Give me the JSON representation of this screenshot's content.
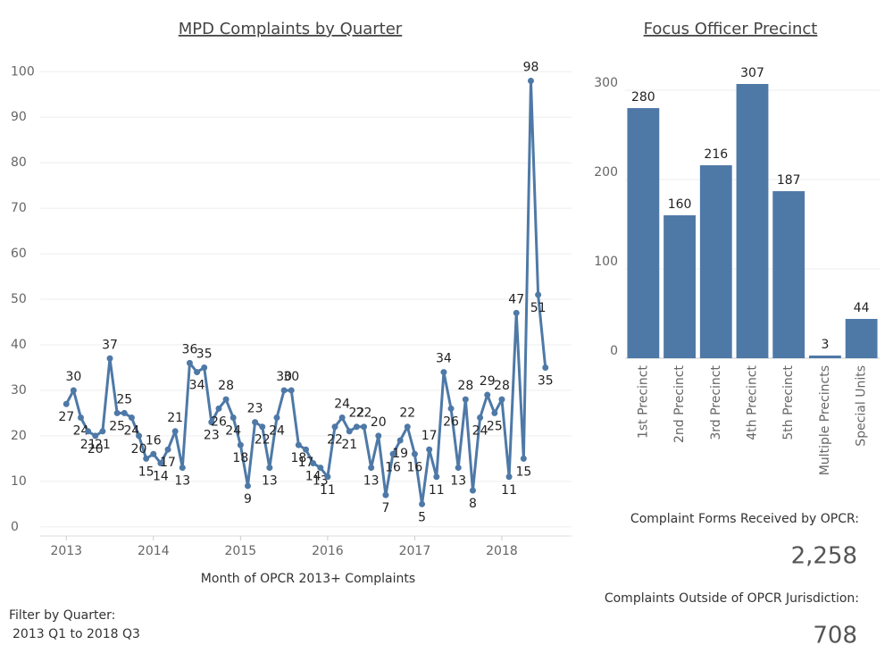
{
  "chart_data": [
    {
      "type": "line",
      "title": "MPD Complaints by Quarter",
      "x_label": "Month of OPCR 2013+ Complaints",
      "x": [
        "2013-01",
        "2013-02",
        "2013-03",
        "2013-04",
        "2013-05",
        "2013-06",
        "2013-07",
        "2013-08",
        "2013-09",
        "2013-10",
        "2013-11",
        "2013-12",
        "2014-01",
        "2014-02",
        "2014-03",
        "2014-04",
        "2014-05",
        "2014-06",
        "2014-07",
        "2014-08",
        "2014-09",
        "2014-10",
        "2014-11",
        "2014-12",
        "2015-01",
        "2015-02",
        "2015-03",
        "2015-04",
        "2015-05",
        "2015-06",
        "2015-07",
        "2015-08",
        "2015-09",
        "2015-10",
        "2015-11",
        "2015-12",
        "2016-01",
        "2016-02",
        "2016-03",
        "2016-04",
        "2016-05",
        "2016-06",
        "2016-07",
        "2016-08",
        "2016-09",
        "2016-10",
        "2016-11",
        "2016-12",
        "2017-01",
        "2017-02",
        "2017-03",
        "2017-04",
        "2017-05",
        "2017-06",
        "2017-07",
        "2017-08",
        "2017-09",
        "2017-10",
        "2017-11",
        "2017-12",
        "2018-01",
        "2018-02",
        "2018-03",
        "2018-04",
        "2018-05",
        "2018-06",
        "2018-07"
      ],
      "series": [
        {
          "name": "Complaints",
          "color": "#4e79a7",
          "values": [
            27,
            30,
            24,
            21,
            20,
            21,
            37,
            25,
            25,
            24,
            20,
            15,
            16,
            14,
            17,
            21,
            13,
            36,
            34,
            35,
            23,
            26,
            28,
            24,
            18,
            9,
            23,
            22,
            13,
            24,
            30,
            30,
            18,
            17,
            14,
            13,
            11,
            22,
            24,
            21,
            22,
            22,
            13,
            20,
            7,
            16,
            19,
            22,
            16,
            5,
            17,
            11,
            34,
            26,
            13,
            28,
            8,
            24,
            29,
            25,
            28,
            11,
            47,
            15,
            98,
            51,
            35
          ]
        }
      ],
      "xlim": [
        2012.7,
        2018.8
      ],
      "xticks": [
        2013,
        2014,
        2015,
        2016,
        2017,
        2018
      ],
      "ylim": [
        -2,
        103
      ],
      "yticks": [
        0,
        10,
        20,
        30,
        40,
        50,
        60,
        70,
        80,
        90,
        100
      ],
      "grid": true
    },
    {
      "type": "bar",
      "title": "Focus Officer Precinct",
      "categories": [
        "1st Precinct",
        "2nd Precinct",
        "3rd Precinct",
        "4th Precinct",
        "5th Precinct",
        "Multiple Precincts",
        "Special Units"
      ],
      "values": [
        280,
        160,
        216,
        307,
        187,
        3,
        44
      ],
      "color": "#4e79a7",
      "ylim": [
        0,
        321
      ],
      "yticks": [
        0,
        100,
        200,
        300
      ],
      "grid": true
    }
  ],
  "filter": {
    "label": "Filter by Quarter:",
    "value": "2013 Q1 to 2018 Q3"
  },
  "kpis": [
    {
      "label": "Complaint Forms Received by OPCR:",
      "value": "2,258"
    },
    {
      "label": "Complaints Outside of OPCR Jurisdiction:",
      "value": "708"
    }
  ]
}
